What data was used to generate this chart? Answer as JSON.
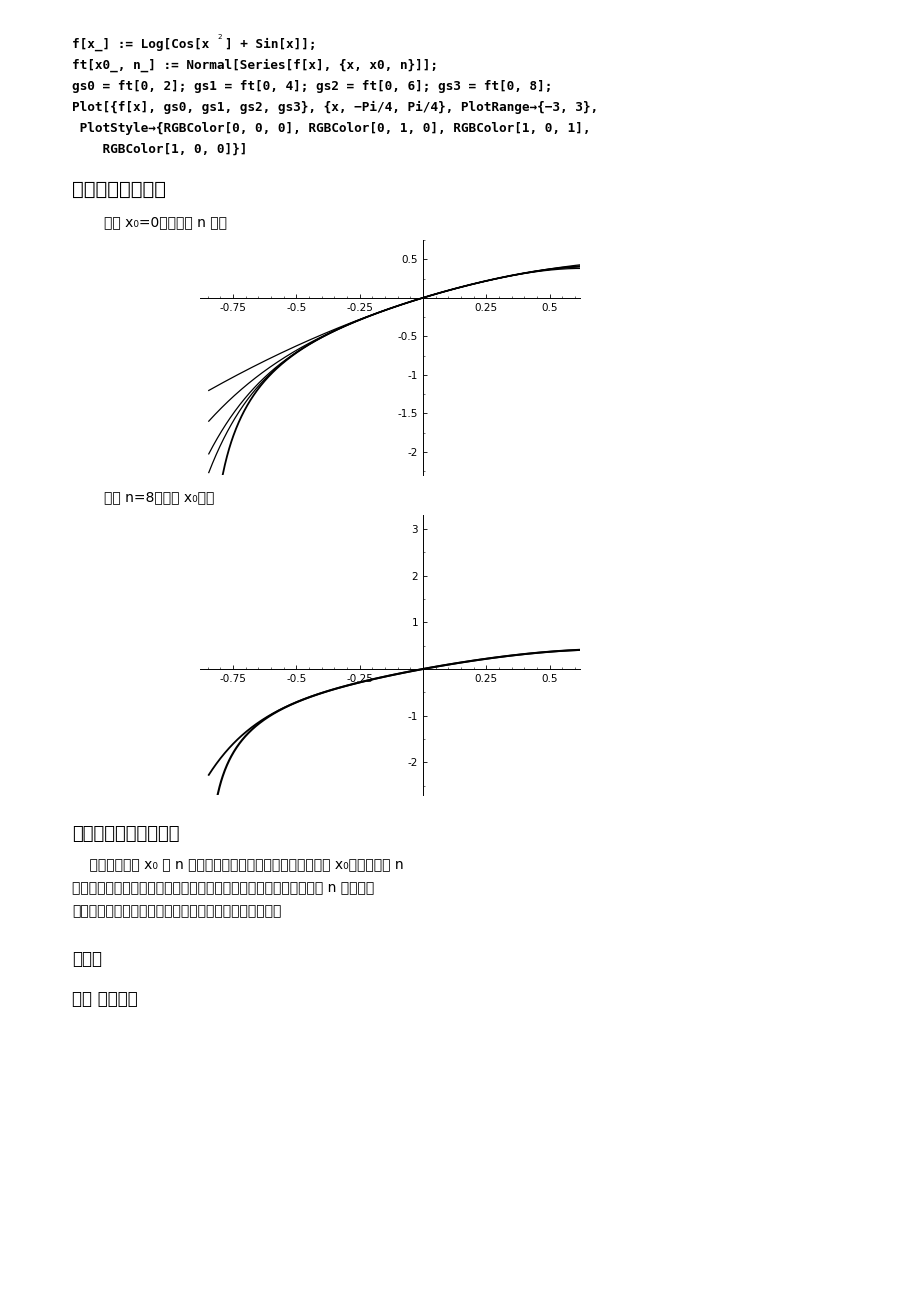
{
  "page_bg": "#ffffff",
  "section5_title": "五、程序运行结果",
  "caption1": "固定 x₀=0，改变的 n 的值",
  "caption2": "固定 n=8，改变 x₀的值",
  "section6_title": "六、结果的讨论和分析",
  "section6_lines": [
    "    当选取不同的 x₀ 与 n 的值时，输出的结果会改变。如果固定 x₀的值，这随 n",
    "的增加，函数的函数图形和泰勒展开式的图形会趋于吻合；如果固定 n 的值，图",
    "像只在展开点附近的一个局部范围内才有叫近似精确度。"
  ],
  "exp3_title": "实验三",
  "exp3_section1": "一、 实验题目",
  "plot1_xlim": [
    -0.88,
    0.62
  ],
  "plot1_ylim": [
    -2.3,
    0.75
  ],
  "plot1_xticks": [
    -0.75,
    -0.5,
    -0.25,
    0.25,
    0.5
  ],
  "plot1_yticks": [
    -2.0,
    -1.5,
    -1.0,
    -0.5,
    0.5
  ],
  "plot2_xlim": [
    -0.88,
    0.62
  ],
  "plot2_ylim": [
    -2.7,
    3.3
  ],
  "plot2_xticks": [
    -0.75,
    -0.5,
    -0.25,
    0.25,
    0.5
  ],
  "plot2_yticks": [
    -2.0,
    -1.0,
    1.0,
    2.0,
    3.0
  ]
}
